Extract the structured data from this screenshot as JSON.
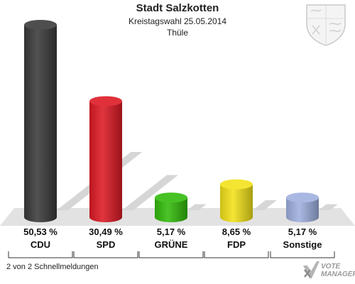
{
  "header": {
    "title": "Stadt Salzkotten",
    "subtitle": "Kreistagswahl 25.05.2014",
    "district": "Thüle"
  },
  "footer": {
    "reports": "2 von 2 Schnellmeldungen"
  },
  "brand": {
    "line1": "VOTE",
    "line2": "MANAGER"
  },
  "chart_data": {
    "type": "bar",
    "categories": [
      "CDU",
      "SPD",
      "GRÜNE",
      "FDP",
      "Sonstige"
    ],
    "values": [
      50.53,
      30.49,
      5.17,
      8.65,
      5.17
    ],
    "value_labels": [
      "50,53 %",
      "30,49 %",
      "5,17 %",
      "8,65 %",
      "5,17 %"
    ],
    "colors": [
      "#3a3a3a",
      "#dd1a25",
      "#33bb0c",
      "#f2e21a",
      "#9fb0df"
    ],
    "ylim": [
      0,
      55
    ],
    "grid": false,
    "legend": "none"
  }
}
